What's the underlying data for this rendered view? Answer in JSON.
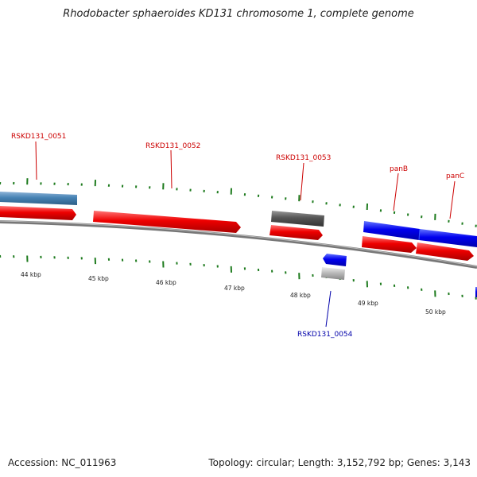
{
  "title": "Rhodobacter sphaeroides KD131 chromosome 1, complete genome",
  "footer": {
    "accession": "Accession: NC_011963",
    "summary": "Topology: circular; Length: 3,152,792 bp; Genes: 3,143"
  },
  "colors": {
    "forward_cds": "#ff0000",
    "reverse_cds": "#0000ff",
    "steel_feature": "#4682b4",
    "pseudo_gray": "#666666",
    "light_gray": "#bbbbbb",
    "backbone": "#777777",
    "ticks": "#1e7b1e",
    "forward_label": "#cc0000",
    "reverse_label": "#0000aa"
  },
  "kbp_labels": [
    "44 kbp",
    "45 kbp",
    "46 kbp",
    "47 kbp",
    "48 kbp",
    "49 kbp",
    "50 kbp"
  ],
  "gene_labels": {
    "g51": "RSKD131_0051",
    "g52": "RSKD131_0052",
    "g53": "RSKD131_0053",
    "g54": "RSKD131_0054",
    "panB": "panB",
    "panC": "panC"
  }
}
